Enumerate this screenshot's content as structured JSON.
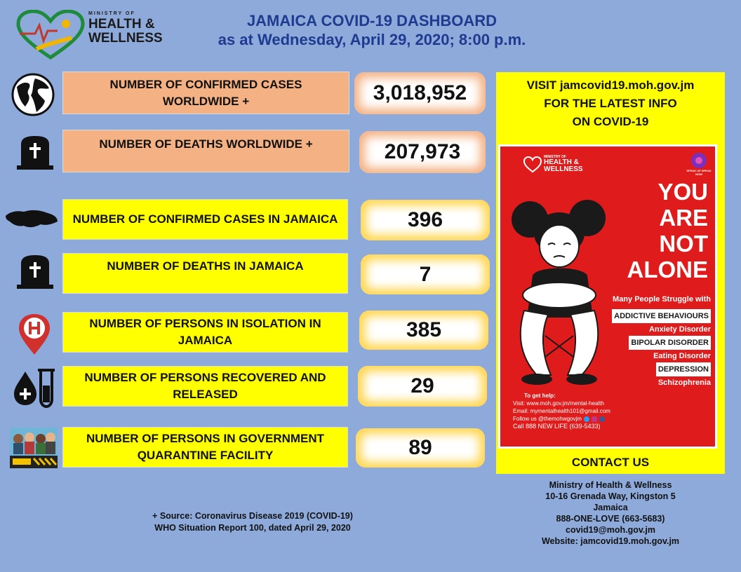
{
  "logo": {
    "line1": "MINISTRY OF",
    "line2": "HEALTH &",
    "line3": "WELLNESS"
  },
  "header": {
    "title": "JAMAICA COVID-19 DASHBOARD",
    "subtitle": "as at Wednesday, April 29, 2020; 8:00 p.m."
  },
  "stats": [
    {
      "label": "NUMBER OF CONFIRMED CASES WORLDWIDE +",
      "value": "3,018,952",
      "icon": "globe-icon"
    },
    {
      "label": "NUMBER OF DEATHS WORLDWIDE +",
      "value": "207,973",
      "icon": "tombstone-icon"
    },
    {
      "label": "NUMBER OF CONFIRMED CASES IN JAMAICA",
      "value": "396",
      "icon": "jamaica-map-icon"
    },
    {
      "label": "NUMBER OF DEATHS IN JAMAICA",
      "value": "7",
      "icon": "tombstone-icon"
    },
    {
      "label": "NUMBER OF PERSONS IN ISOLATION IN JAMAICA",
      "value": "385",
      "icon": "hospital-pin-icon"
    },
    {
      "label": "NUMBER OF PERSONS RECOVERED AND RELEASED",
      "value": "29",
      "icon": "blood-testtube-icon"
    },
    {
      "label": "NUMBER OF PERSONS IN GOVERNMENT QUARANTINE FACILITY",
      "value": "89",
      "icon": "quarantine-people-icon"
    }
  ],
  "visit": {
    "line1": "VISIT  jamcovid19.moh.gov.jm",
    "line2": "FOR THE LATEST INFO",
    "line3": "ON COVID-19"
  },
  "poster": {
    "logo1": "HEALTH &",
    "logo2": "WELLNESS",
    "logo_small": "MINISTRY OF",
    "badge": "SPEAK UP SPEAK NOW",
    "headline": [
      "YOU",
      "ARE",
      "NOT",
      "ALONE"
    ],
    "struggle": "Many People Struggle with",
    "items": [
      "ADDICTIVE BEHAVIOURS",
      "Anxiety Disorder",
      "BIPOLAR DISORDER",
      "Eating Disorder",
      "DEPRESSION",
      "Schizophrenia"
    ],
    "help_title": "To get help:",
    "help_lines": [
      "Visit: www.moh.gov.jm/mental-health",
      "Email: mymentalhealth101@gmail.com",
      "Follow us @themohwgovjm",
      "Call 888 NEW LIFE (639-5433)"
    ]
  },
  "contact": {
    "title": "CONTACT US"
  },
  "address": {
    "lines": [
      "Ministry of Health & Wellness",
      "10-16 Grenada Way, Kingston 5",
      "Jamaica",
      "888-ONE-LOVE (663-5683)",
      "covid19@moh.gov.jm",
      "Website: jamcovid19.moh.gov.jm"
    ]
  },
  "source": {
    "line1": "+ Source: Coronavirus Disease 2019 (COVID-19)",
    "line2": "WHO Situation Report 100, dated April 29, 2020"
  },
  "colors": {
    "background": "#8eaadb",
    "peach": "#f4b183",
    "yellow": "#ffff00",
    "title_blue": "#1f3b8f",
    "poster_red": "#e01b1b"
  }
}
